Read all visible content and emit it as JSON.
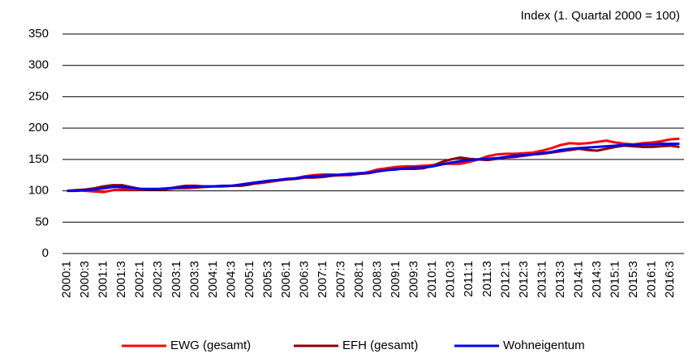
{
  "chart_data": {
    "type": "line",
    "subtitle": "Index (1. Quartal 2000 = 100)",
    "categories": [
      "2000:1",
      null,
      "2000:3",
      null,
      "2001:1",
      null,
      "2001:3",
      null,
      "2002:1",
      null,
      "2002:3",
      null,
      "2003:1",
      null,
      "2003:3",
      null,
      "2004:1",
      null,
      "2004:3",
      null,
      "2005:1",
      null,
      "2005:3",
      null,
      "2006:1",
      null,
      "2006:3",
      null,
      "2007:1",
      null,
      "2007:3",
      null,
      "2008:1",
      null,
      "2008:3",
      null,
      "2009:1",
      null,
      "2009:3",
      null,
      "2010:1",
      null,
      "2010:3",
      null,
      "2011:1",
      null,
      "2011:3",
      null,
      "2012:1",
      null,
      "2012:3",
      null,
      "2013:1",
      null,
      "2013:3",
      null,
      "2014:1",
      null,
      "2014:3",
      null,
      "2015:1",
      null,
      "2015:3",
      null,
      "2016:1",
      null,
      "2016:3",
      null
    ],
    "series": [
      {
        "name": "EWG (gesamt)",
        "color": "#ff0000",
        "values": [
          100,
          101,
          100,
          99,
          98,
          101,
          102,
          102,
          102,
          102,
          102,
          103,
          104,
          104,
          105,
          106,
          107,
          107,
          108,
          109,
          111,
          112,
          114,
          116,
          118,
          120,
          123,
          125,
          126,
          126,
          125,
          125,
          127,
          130,
          134,
          136,
          138,
          139,
          139,
          140,
          141,
          143,
          143,
          143,
          146,
          150,
          155,
          158,
          159,
          159,
          160,
          161,
          164,
          168,
          173,
          176,
          175,
          176,
          178,
          180,
          177,
          175,
          174,
          176,
          177,
          179,
          182,
          183
        ]
      },
      {
        "name": "EFH (gesamt)",
        "color": "#8b0000",
        "values": [
          100,
          101,
          102,
          104,
          107,
          109,
          109,
          106,
          103,
          102,
          102,
          103,
          106,
          108,
          108,
          107,
          107,
          107,
          108,
          108,
          110,
          113,
          115,
          117,
          118,
          119,
          121,
          121,
          122,
          124,
          125,
          126,
          127,
          128,
          131,
          133,
          135,
          135,
          135,
          136,
          140,
          146,
          150,
          153,
          151,
          150,
          149,
          151,
          153,
          154,
          156,
          158,
          159,
          161,
          163,
          165,
          167,
          165,
          164,
          167,
          170,
          172,
          171,
          170,
          170,
          171,
          172,
          170
        ]
      },
      {
        "name": "Wohneigentum",
        "color": "#0000ee",
        "values": [
          100,
          100,
          101,
          102,
          104,
          106,
          106,
          105,
          103,
          103,
          103,
          104,
          105,
          106,
          106,
          107,
          107,
          108,
          108,
          110,
          112,
          114,
          116,
          117,
          119,
          120,
          122,
          123,
          124,
          125,
          126,
          127,
          128,
          129,
          131,
          133,
          134,
          136,
          137,
          137,
          139,
          142,
          145,
          147,
          149,
          150,
          151,
          152,
          154,
          156,
          157,
          158,
          160,
          162,
          165,
          167,
          168,
          169,
          170,
          171,
          172,
          173,
          173,
          174,
          174,
          175,
          175,
          175
        ]
      }
    ],
    "ylim": [
      0,
      350
    ],
    "yticks": [
      0,
      50,
      100,
      150,
      200,
      250,
      300,
      350
    ],
    "grid": true,
    "legend": "bottom"
  }
}
